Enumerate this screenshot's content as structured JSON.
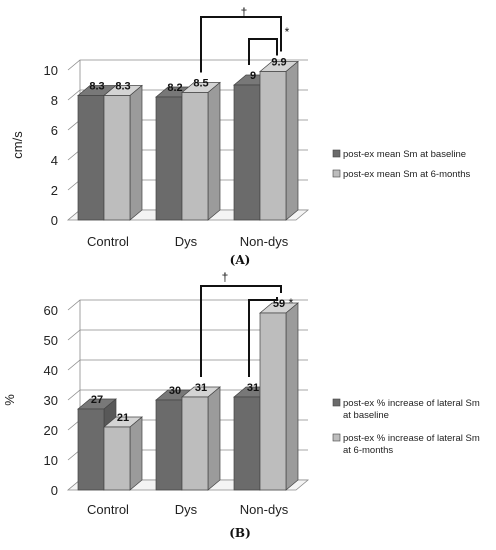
{
  "chart_data": [
    {
      "type": "bar",
      "panel_label": "(A)",
      "categories": [
        "Control",
        "Dys",
        "Non-dys"
      ],
      "series": [
        {
          "name": "post-ex mean Sm at baseline",
          "values": [
            8.3,
            8.2,
            9
          ],
          "labels": [
            "8.3",
            "8.2",
            "9"
          ],
          "color": "#6b6b6b"
        },
        {
          "name": "post-ex mean Sm at 6-months",
          "values": [
            8.3,
            8.5,
            9.9
          ],
          "labels": [
            "8.3",
            "8.5",
            "9.9"
          ],
          "color": "#bdbdbd"
        }
      ],
      "ylabel": "cm/s",
      "yticks": [
        "0",
        "2",
        "4",
        "6",
        "8",
        "10"
      ],
      "ylim": [
        0,
        10
      ],
      "grid": true,
      "legend": "right",
      "annotations": [
        {
          "text": "†",
          "between": "Dys 6-months and Non-dys 6-months"
        },
        {
          "text": "*",
          "between": "Non-dys baseline and Non-dys 6-months"
        }
      ]
    },
    {
      "type": "bar",
      "panel_label": "(B)",
      "categories": [
        "Control",
        "Dys",
        "Non-dys"
      ],
      "series": [
        {
          "name": "post-ex % increase of lateral Sm at baseline",
          "values": [
            27,
            30,
            31
          ],
          "labels": [
            "27",
            "30",
            "31"
          ],
          "color": "#6b6b6b"
        },
        {
          "name": "post-ex % increase of lateral Sm at 6-months",
          "values": [
            21,
            31,
            59
          ],
          "labels": [
            "21",
            "31",
            "59"
          ],
          "color": "#bdbdbd"
        }
      ],
      "ylabel": "%",
      "yticks": [
        "0",
        "10",
        "20",
        "30",
        "40",
        "50",
        "60"
      ],
      "ylim": [
        0,
        60
      ],
      "grid": true,
      "legend": "right",
      "annotations": [
        {
          "text": "†",
          "between": "Dys 6-months and Non-dys 6-months"
        },
        {
          "text": "*",
          "between": "Non-dys baseline and Non-dys 6-months"
        }
      ]
    }
  ]
}
